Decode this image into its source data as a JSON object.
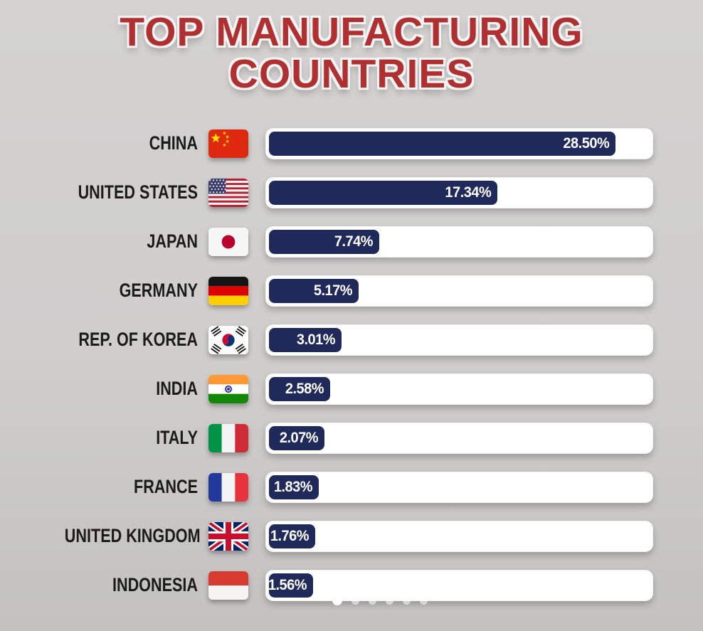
{
  "title": {
    "line1": "TOP MANUFACTURING",
    "line2": "COUNTRIES"
  },
  "chart_data": {
    "type": "bar",
    "orientation": "horizontal",
    "title": "TOP MANUFACTURING COUNTRIES",
    "categories": [
      "CHINA",
      "UNITED STATES",
      "JAPAN",
      "GERMANY",
      "REP. OF KOREA",
      "INDIA",
      "ITALY",
      "FRANCE",
      "UNITED KINGDOM",
      "INDONESIA"
    ],
    "values": [
      28.5,
      17.34,
      7.74,
      5.17,
      3.01,
      2.58,
      2.07,
      1.83,
      1.76,
      1.56
    ],
    "value_labels": [
      "28.50%",
      "17.34%",
      "7.74%",
      "5.17%",
      "3.01%",
      "2.58%",
      "2.07%",
      "1.83%",
      "1.76%",
      "1.56%"
    ],
    "unit": "%",
    "xlim": [
      0,
      30
    ],
    "grid": false,
    "legend": false,
    "bar_color": "#202a5a",
    "track_color": "#ffffff"
  },
  "rows": [
    {
      "country": "CHINA",
      "flag": "china-flag",
      "value": 28.5,
      "label": "28.50%",
      "bar_pct": 91.0
    },
    {
      "country": "UNITED STATES",
      "flag": "united-states-flag",
      "value": 17.34,
      "label": "17.34%",
      "bar_pct": 60.0
    },
    {
      "country": "JAPAN",
      "flag": "japan-flag",
      "value": 7.74,
      "label": "7.74%",
      "bar_pct": 29.0
    },
    {
      "country": "GERMANY",
      "flag": "germany-flag",
      "value": 5.17,
      "label": "5.17%",
      "bar_pct": 23.5
    },
    {
      "country": "REP. OF KOREA",
      "flag": "south-korea-flag",
      "value": 3.01,
      "label": "3.01%",
      "bar_pct": 19.0
    },
    {
      "country": "INDIA",
      "flag": "india-flag",
      "value": 2.58,
      "label": "2.58%",
      "bar_pct": 16.0
    },
    {
      "country": "ITALY",
      "flag": "italy-flag",
      "value": 2.07,
      "label": "2.07%",
      "bar_pct": 14.5
    },
    {
      "country": "FRANCE",
      "flag": "france-flag",
      "value": 1.83,
      "label": "1.83%",
      "bar_pct": 13.0
    },
    {
      "country": "UNITED KINGDOM",
      "flag": "united-kingdom-flag",
      "value": 1.76,
      "label": "1.76%",
      "bar_pct": 12.2
    },
    {
      "country": "INDONESIA",
      "flag": "indonesia-flag",
      "value": 1.56,
      "label": "1.56%",
      "bar_pct": 11.5
    }
  ],
  "carousel": {
    "dot_count": 6,
    "active_index": 0
  },
  "colors": {
    "background_top": "#d3d2d1",
    "background_bottom": "#c3c2c0",
    "title_red": "#b02f30",
    "bar_fill": "#202a5a",
    "bar_track": "#ffffff",
    "label_black": "#1b1b1b",
    "value_text": "#ffffff"
  }
}
